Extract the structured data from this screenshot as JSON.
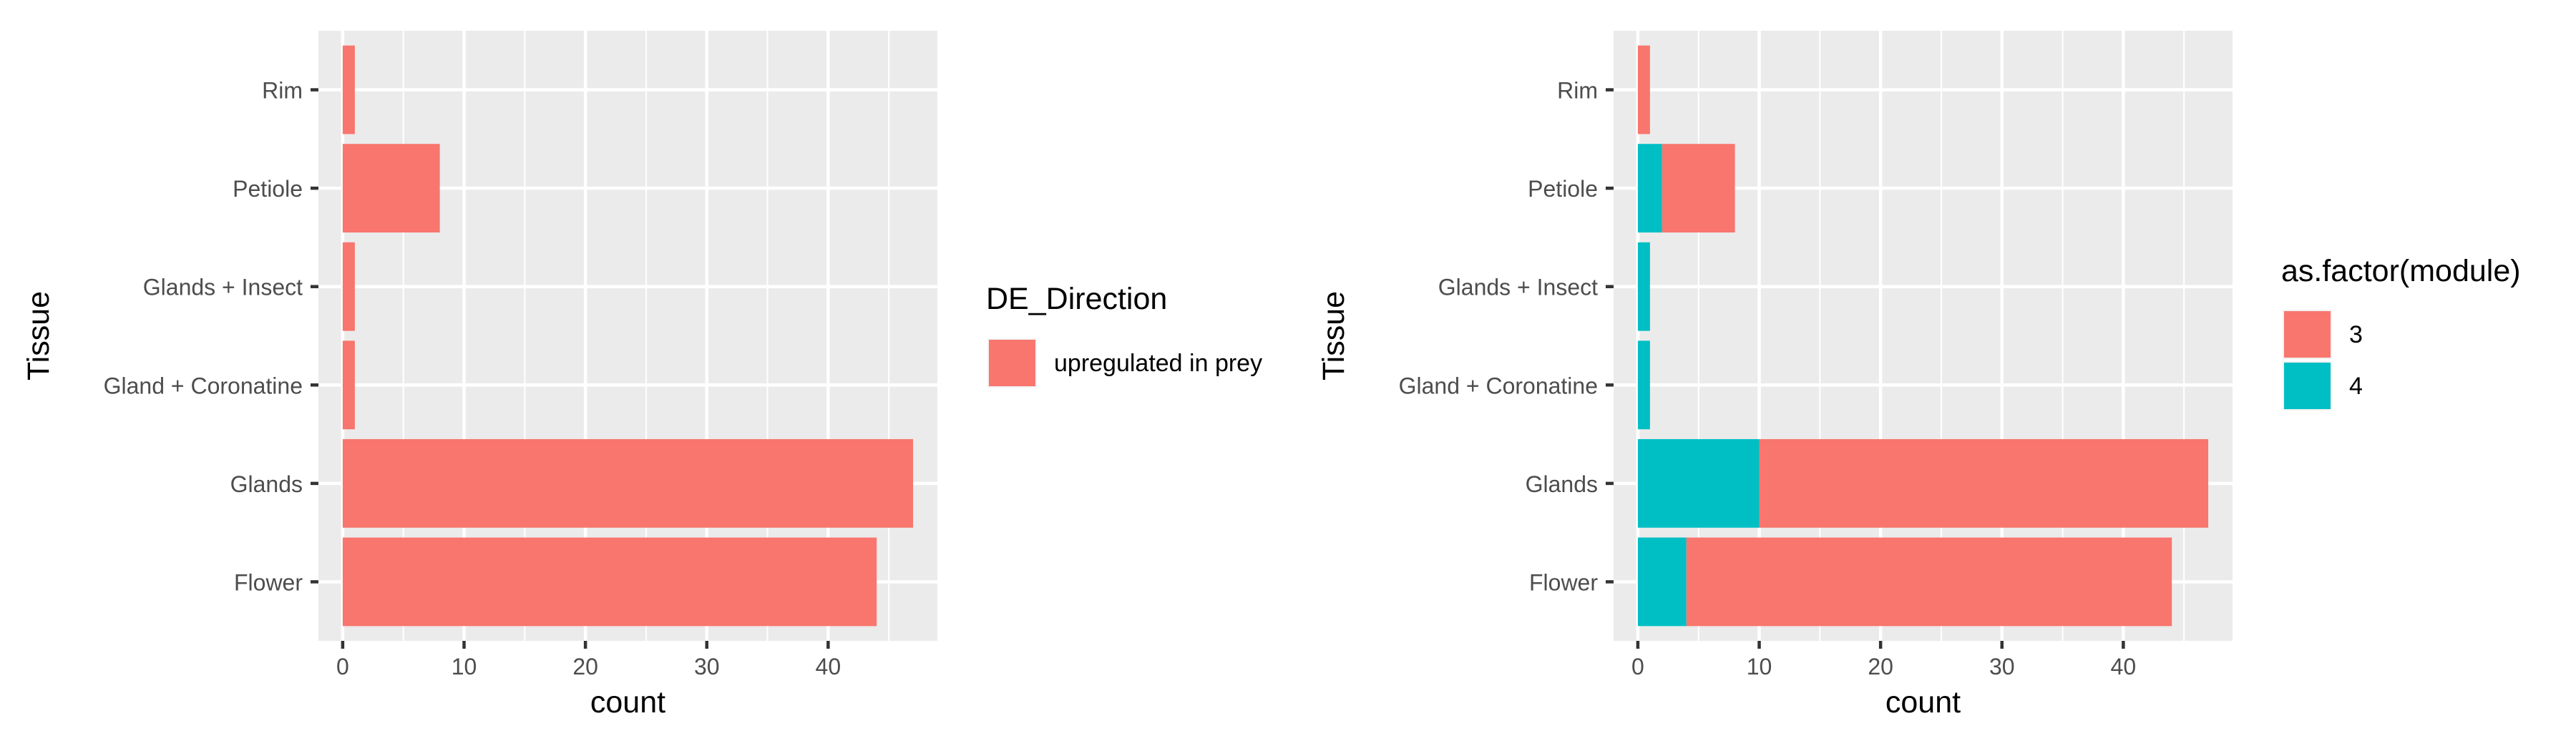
{
  "chart_data": [
    {
      "type": "bar",
      "orientation": "horizontal",
      "stacked": false,
      "xlabel": "count",
      "ylabel": "Tissue",
      "categories": [
        "Flower",
        "Glands",
        "Gland + Coronatine",
        "Glands + Insect",
        "Petiole",
        "Rim"
      ],
      "xlim": [
        -2,
        49
      ],
      "x_ticks": [
        0,
        10,
        20,
        30,
        40
      ],
      "grid": true,
      "legend": {
        "title": "DE_Direction",
        "position": "right"
      },
      "series": [
        {
          "name": "upregulated in prey",
          "color": "#F8766D",
          "values": [
            44,
            47,
            1,
            1,
            8,
            1
          ]
        }
      ]
    },
    {
      "type": "bar",
      "orientation": "horizontal",
      "stacked": true,
      "xlabel": "count",
      "ylabel": "Tissue",
      "categories": [
        "Flower",
        "Glands",
        "Gland + Coronatine",
        "Glands + Insect",
        "Petiole",
        "Rim"
      ],
      "xlim": [
        -2,
        49
      ],
      "x_ticks": [
        0,
        10,
        20,
        30,
        40
      ],
      "grid": true,
      "legend": {
        "title": "as.factor(module)",
        "position": "right"
      },
      "series": [
        {
          "name": "4",
          "color": "#00BFC4",
          "values": [
            4,
            10,
            1,
            1,
            2,
            0
          ]
        },
        {
          "name": "3",
          "color": "#F8766D",
          "values": [
            40,
            37,
            0,
            0,
            6,
            1
          ]
        }
      ],
      "legend_order": [
        "3",
        "4"
      ]
    }
  ]
}
